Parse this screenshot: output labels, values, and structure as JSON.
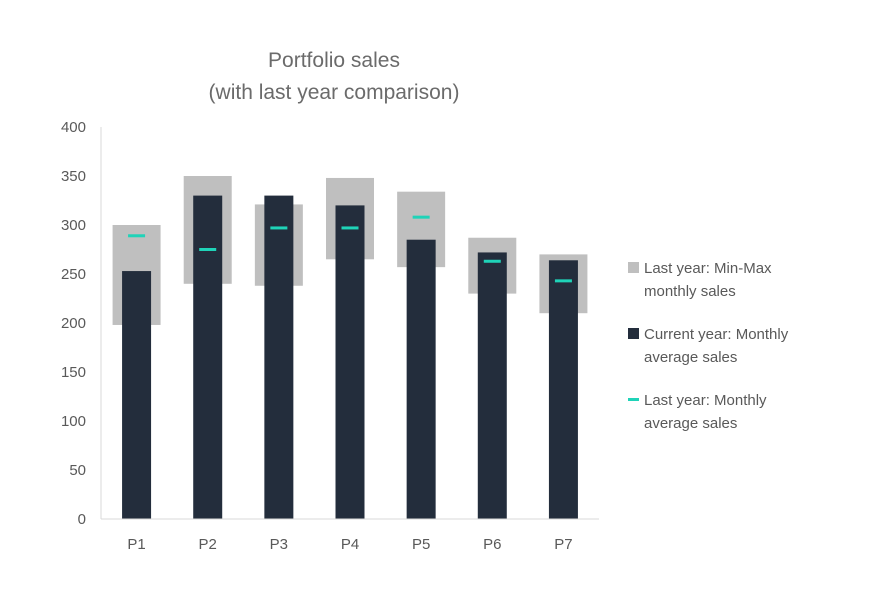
{
  "chart_data": {
    "type": "bar",
    "title_lines": [
      "Portfolio sales",
      "(with last year comparison)"
    ],
    "xlabel": "",
    "ylabel": "",
    "ylim": [
      0,
      400
    ],
    "yticks": [
      0,
      50,
      100,
      150,
      200,
      250,
      300,
      350,
      400
    ],
    "grid": false,
    "legend_position": "right",
    "categories": [
      "P1",
      "P2",
      "P3",
      "P4",
      "P5",
      "P6",
      "P7"
    ],
    "series": [
      {
        "name_lines": [
          "Last year: Min-Max",
          "monthly sales"
        ],
        "kind": "range",
        "color": "#bfbfbf",
        "min": [
          198,
          240,
          238,
          265,
          257,
          230,
          210
        ],
        "max": [
          300,
          350,
          321,
          348,
          334,
          287,
          270
        ]
      },
      {
        "name_lines": [
          "Current year: Monthly",
          "average sales"
        ],
        "kind": "bar",
        "color": "#232d3c",
        "values": [
          253,
          330,
          330,
          320,
          285,
          272,
          264
        ]
      },
      {
        "name_lines": [
          "Last year: Monthly",
          "average sales"
        ],
        "kind": "marker",
        "color": "#1fd3b8",
        "values": [
          289,
          275,
          297,
          297,
          308,
          263,
          243
        ]
      }
    ]
  }
}
